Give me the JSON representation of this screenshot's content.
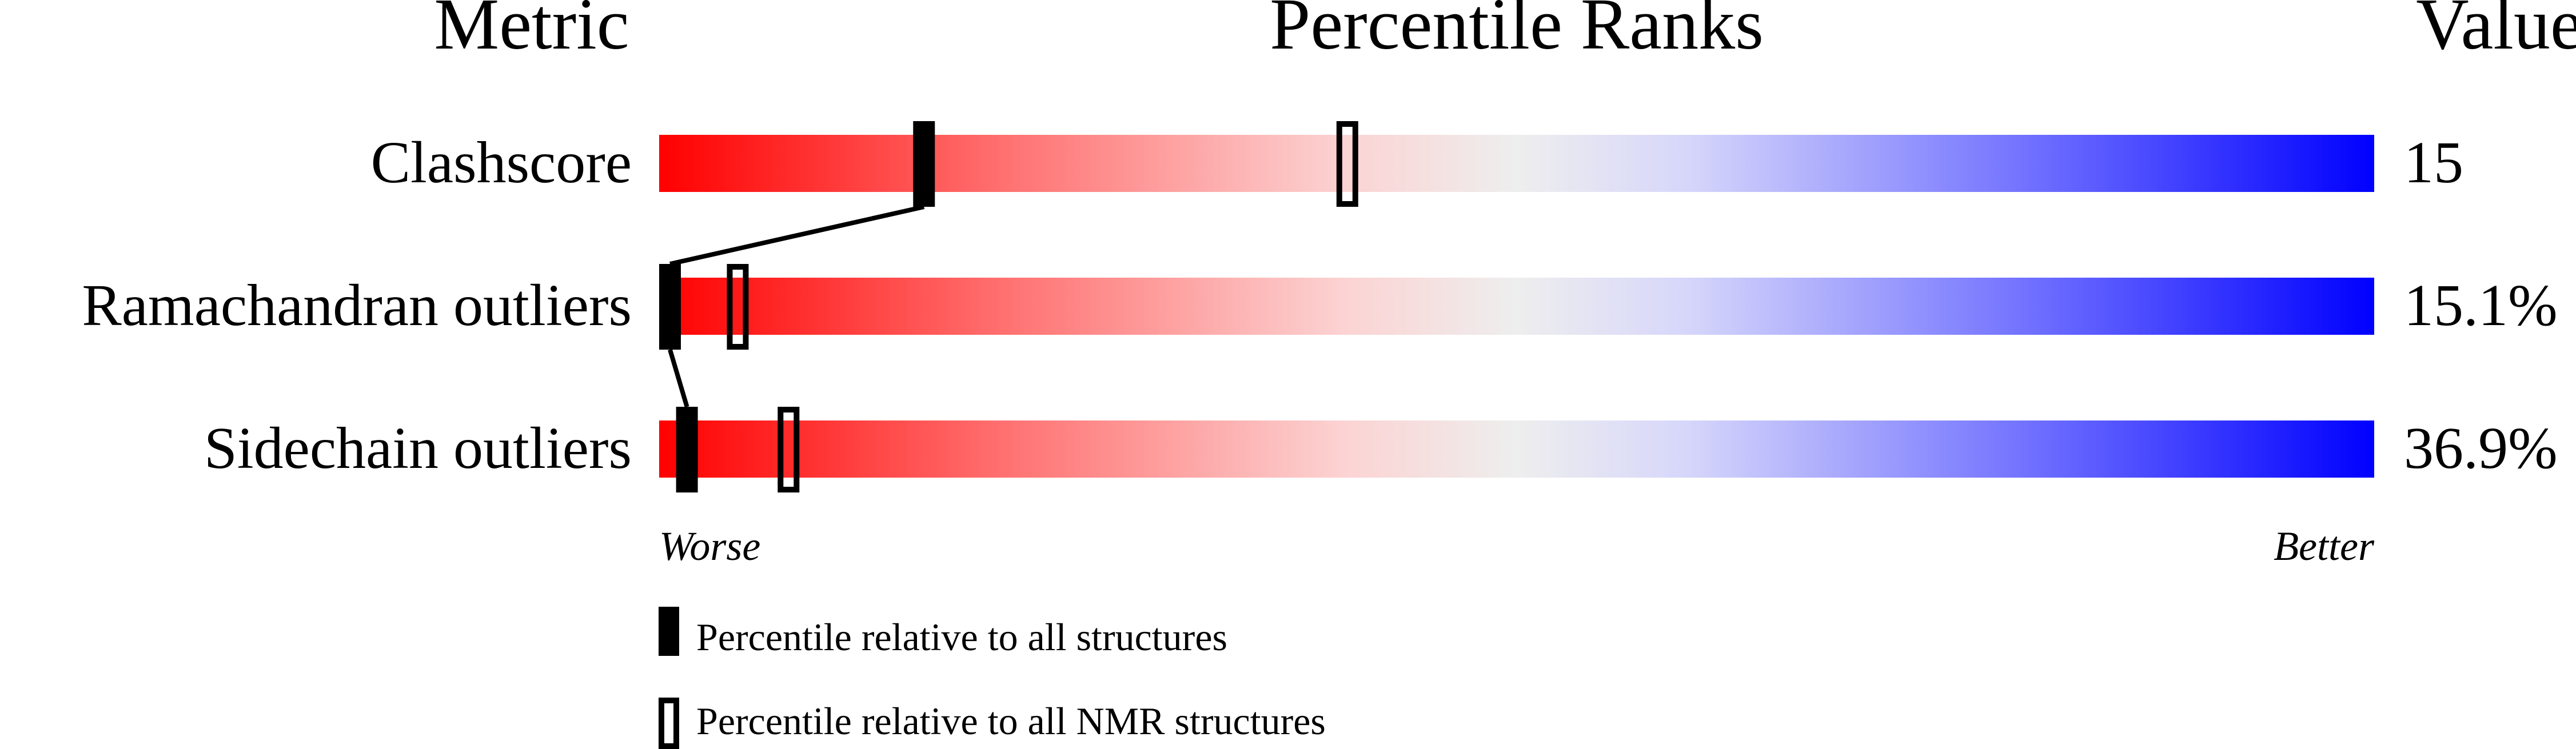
{
  "chart_data": {
    "type": "bar",
    "headers": {
      "metric": "Metric",
      "ranks": "Percentile Ranks",
      "value": "Value"
    },
    "metrics": [
      {
        "label": "Clashscore",
        "value": "15",
        "percentile_all": 15,
        "percentile_nmr": 40
      },
      {
        "label": "Ramachandran outliers",
        "value": "15.1%",
        "percentile_all": 0,
        "percentile_nmr": 4
      },
      {
        "label": "Sidechain outliers",
        "value": "36.9%",
        "percentile_all": 1,
        "percentile_nmr": 7
      }
    ],
    "xlim": [
      0,
      100
    ],
    "axis_labels": {
      "left": "Worse",
      "right": "Better"
    },
    "legend": {
      "all": "Percentile relative to all structures",
      "nmr": "Percentile relative to all NMR structures"
    },
    "colors": {
      "worse": "#ff0000",
      "middle": "#eeeeee",
      "better": "#0000ff",
      "marker": "#000000"
    }
  }
}
